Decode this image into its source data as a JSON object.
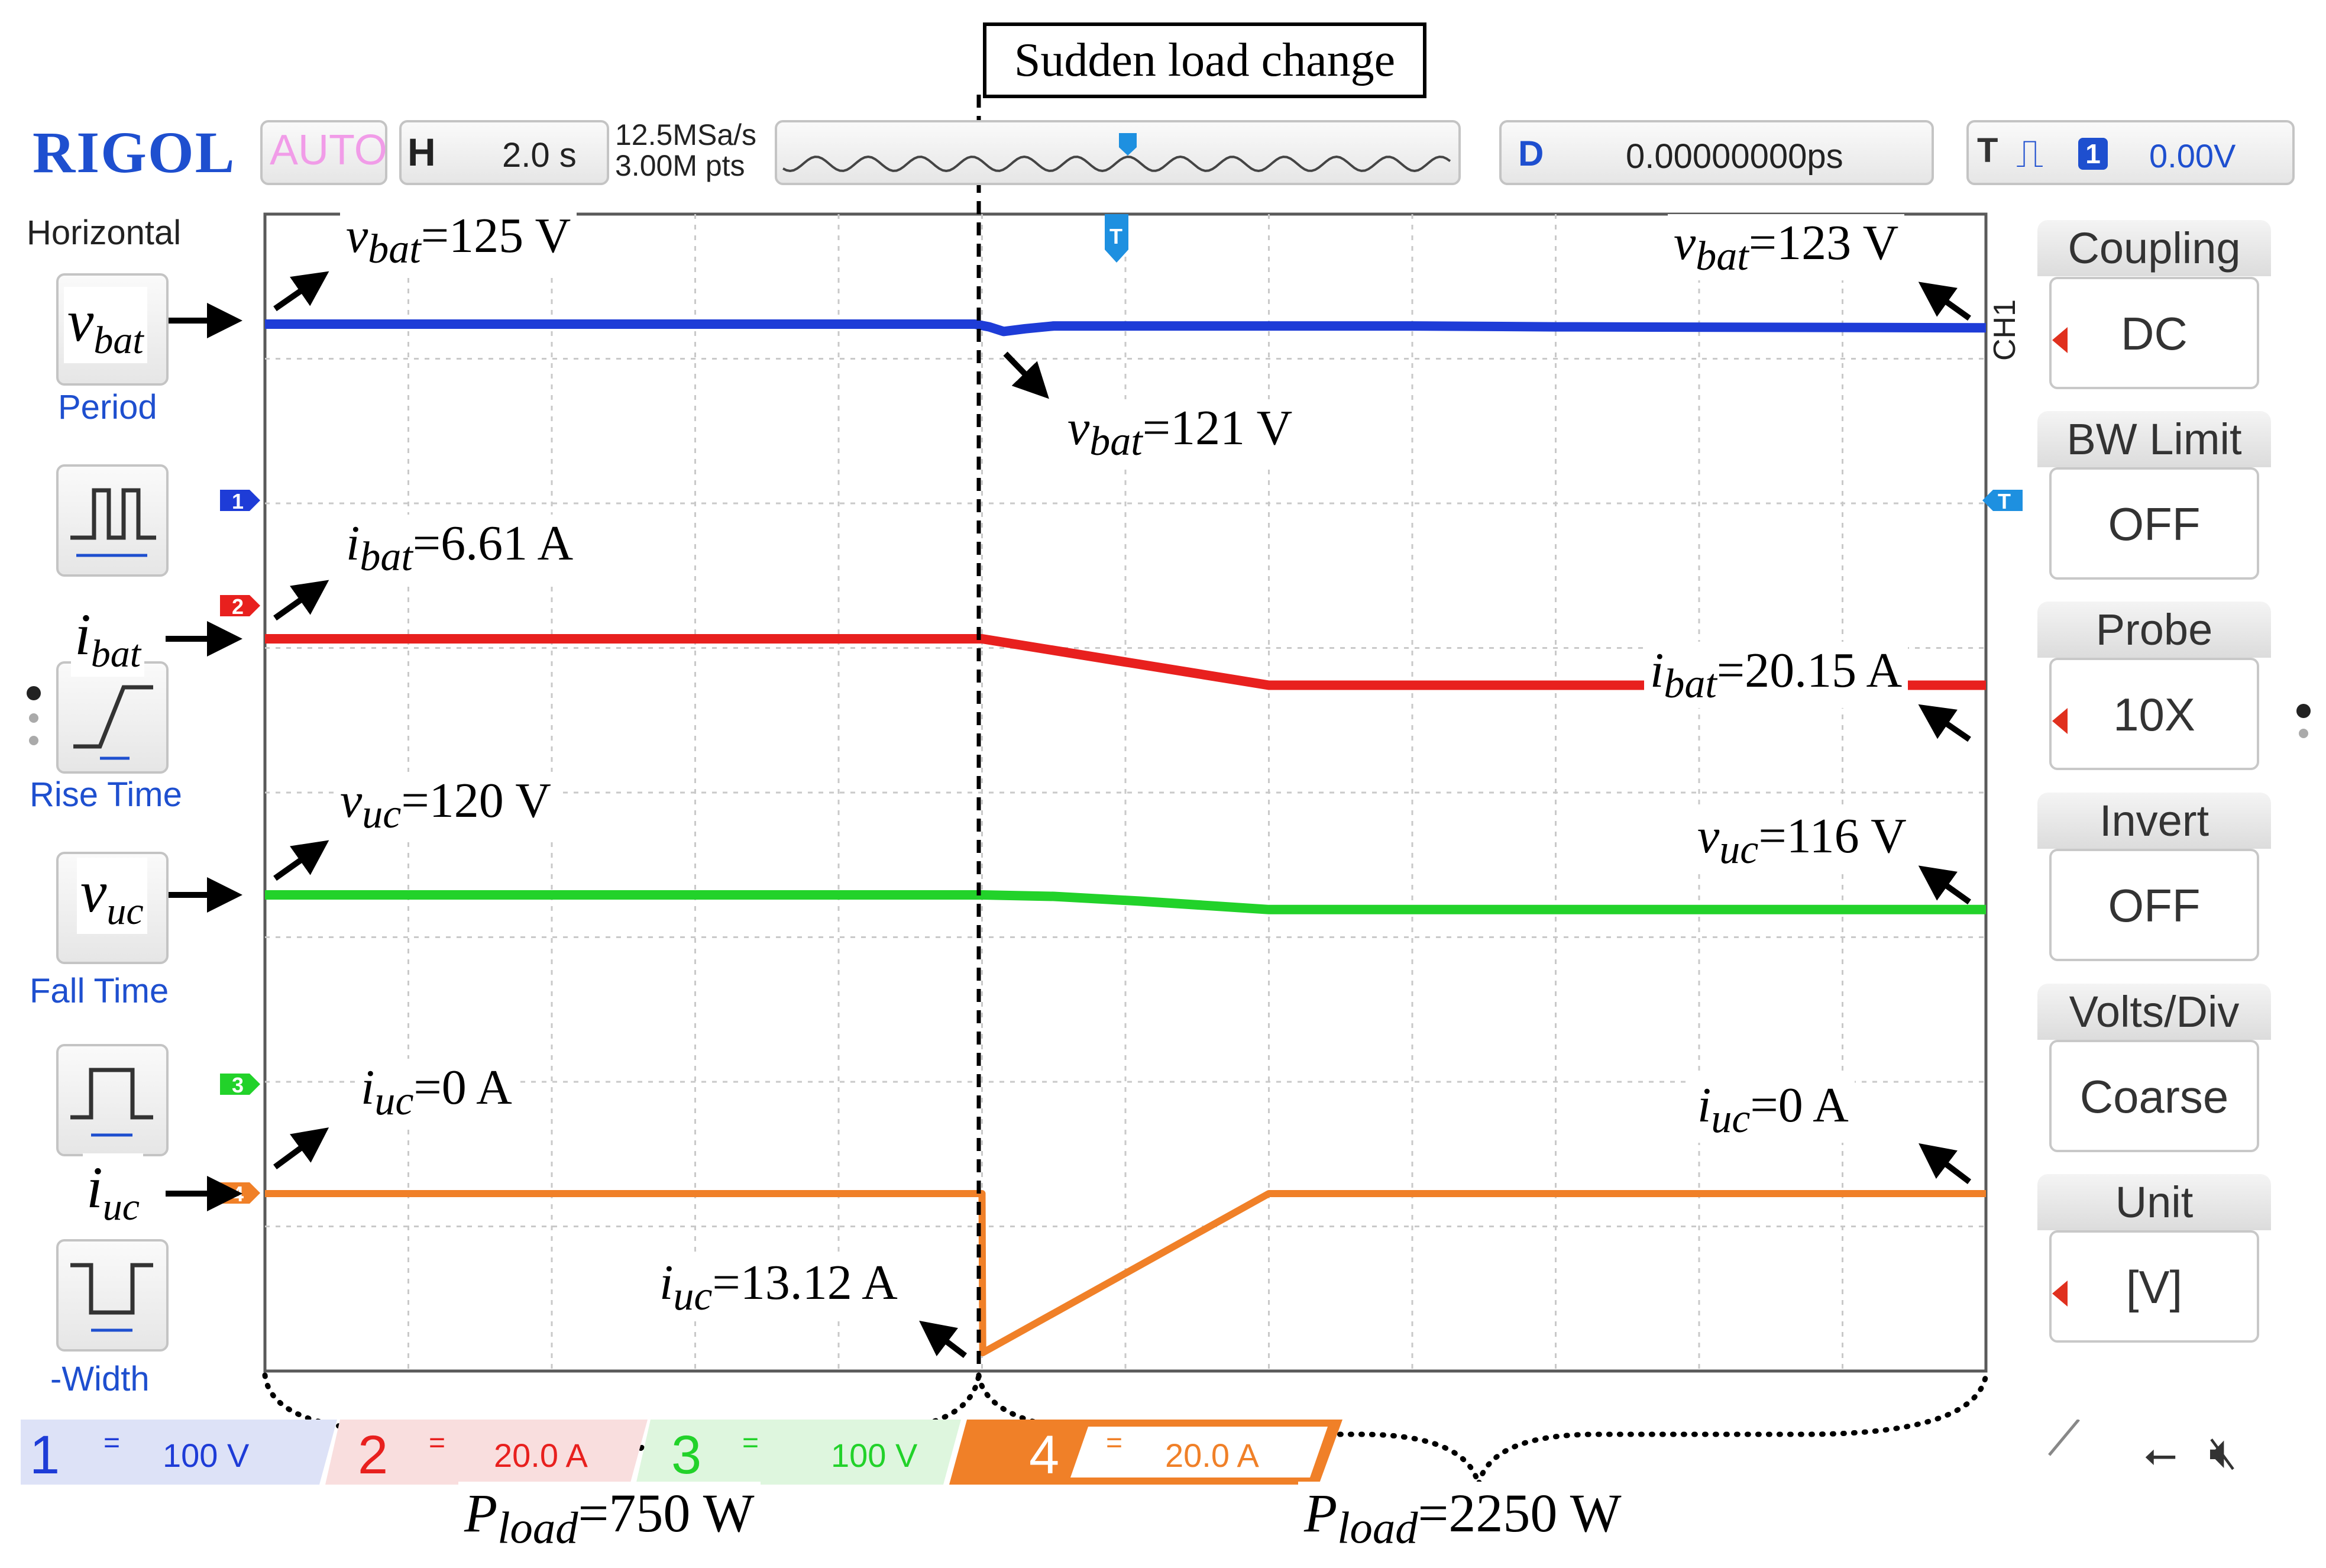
{
  "header": {
    "brand": "RIGOL",
    "mode": "AUTO",
    "timebase_key": "H",
    "timebase": "2.0 s",
    "sample_rate": "12.5MSa/s",
    "memory_depth": "3.00M pts",
    "delay_key": "D",
    "delay": "0.00000000ps",
    "trigger_key": "T",
    "trigger_channel": "1",
    "trigger_level": "0.00V",
    "trigger_marker": "T"
  },
  "left_menu": {
    "title": "Horizontal",
    "items": [
      {
        "label": "Period"
      },
      {
        "label": "Freq"
      },
      {
        "label": "Rise Time"
      },
      {
        "label": "Fall Time"
      },
      {
        "label": "+Width"
      },
      {
        "label": "-Width"
      }
    ]
  },
  "right_menu": {
    "channel": "CH1",
    "items": [
      {
        "title": "Coupling",
        "value": "DC"
      },
      {
        "title": "BW Limit",
        "value": "OFF"
      },
      {
        "title": "Probe",
        "value": "10X"
      },
      {
        "title": "Invert",
        "value": "OFF"
      },
      {
        "title": "Volts/Div",
        "value": "Coarse"
      },
      {
        "title": "Unit",
        "value": "[V]"
      }
    ]
  },
  "channels": [
    {
      "num": "1",
      "coupling": "=",
      "scale": "100 V",
      "color": "#1e3cd7"
    },
    {
      "num": "2",
      "coupling": "=",
      "scale": "20.0 A",
      "color": "#e8201e"
    },
    {
      "num": "3",
      "coupling": "=",
      "scale": "100 V",
      "color": "#22d22a"
    },
    {
      "num": "4",
      "coupling": "=",
      "scale": "20.0 A",
      "color": "#f08028"
    }
  ],
  "status_icons": [
    "usb-icon",
    "speaker-mute-icon"
  ],
  "annotations": {
    "event": "Sudden load change",
    "vbat_before": {
      "sym": "v",
      "sub": "bat",
      "value": "=125 V"
    },
    "vbat_dip": {
      "sym": "v",
      "sub": "bat",
      "value": "=121 V"
    },
    "vbat_after": {
      "sym": "v",
      "sub": "bat",
      "value": "=123 V"
    },
    "ibat_before": {
      "sym": "i",
      "sub": "bat",
      "value": "=6.61 A"
    },
    "ibat_after": {
      "sym": "i",
      "sub": "bat",
      "value": "=20.15 A"
    },
    "vuc_before": {
      "sym": "v",
      "sub": "uc",
      "value": "=120 V"
    },
    "vuc_after": {
      "sym": "v",
      "sub": "uc",
      "value": "=116 V"
    },
    "iuc_before": {
      "sym": "i",
      "sub": "uc",
      "value": "=0 A"
    },
    "iuc_peak": {
      "sym": "i",
      "sub": "uc",
      "value": "=13.12 A"
    },
    "iuc_after": {
      "sym": "i",
      "sub": "uc",
      "value": "=0 A"
    },
    "pload_before": {
      "sym": "P",
      "sub": "load",
      "value": "=750 W"
    },
    "pload_after": {
      "sym": "P",
      "sub": "load",
      "value": "=2250 W"
    },
    "left_labels": [
      {
        "sym": "v",
        "sub": "bat"
      },
      {
        "sym": "i",
        "sub": "bat"
      },
      {
        "sym": "v",
        "sub": "uc"
      },
      {
        "sym": "i",
        "sub": "uc"
      }
    ]
  },
  "chart_data": {
    "type": "line",
    "xlabel": "",
    "ylabel": "",
    "time_per_div_s": 2.0,
    "x_divisions": 12,
    "event_time_s": 10.0,
    "series": [
      {
        "name": "vbat",
        "channel": 1,
        "color": "#1e3cd7",
        "points": [
          [
            0,
            125
          ],
          [
            9.9,
            125
          ],
          [
            10.1,
            123.5
          ],
          [
            10.3,
            121
          ],
          [
            10.6,
            122.5
          ],
          [
            11.0,
            124
          ],
          [
            16.0,
            124
          ],
          [
            18.0,
            123.5
          ],
          [
            24,
            123
          ]
        ]
      },
      {
        "name": "ibat",
        "channel": 2,
        "color": "#e8201e",
        "points": [
          [
            0,
            6.61
          ],
          [
            10.0,
            6.61
          ],
          [
            14.0,
            20.15
          ],
          [
            24,
            20.15
          ]
        ]
      },
      {
        "name": "vuc",
        "channel": 3,
        "color": "#22d22a",
        "points": [
          [
            0,
            120
          ],
          [
            10.0,
            120
          ],
          [
            11.0,
            119.6
          ],
          [
            12.2,
            118.3
          ],
          [
            14.0,
            116
          ],
          [
            24,
            116
          ]
        ]
      },
      {
        "name": "iuc",
        "channel": 4,
        "color": "#f08028",
        "points": [
          [
            0,
            0
          ],
          [
            10.0,
            0
          ],
          [
            10.01,
            -13.12
          ],
          [
            14.0,
            0
          ],
          [
            24,
            0
          ]
        ]
      }
    ]
  }
}
